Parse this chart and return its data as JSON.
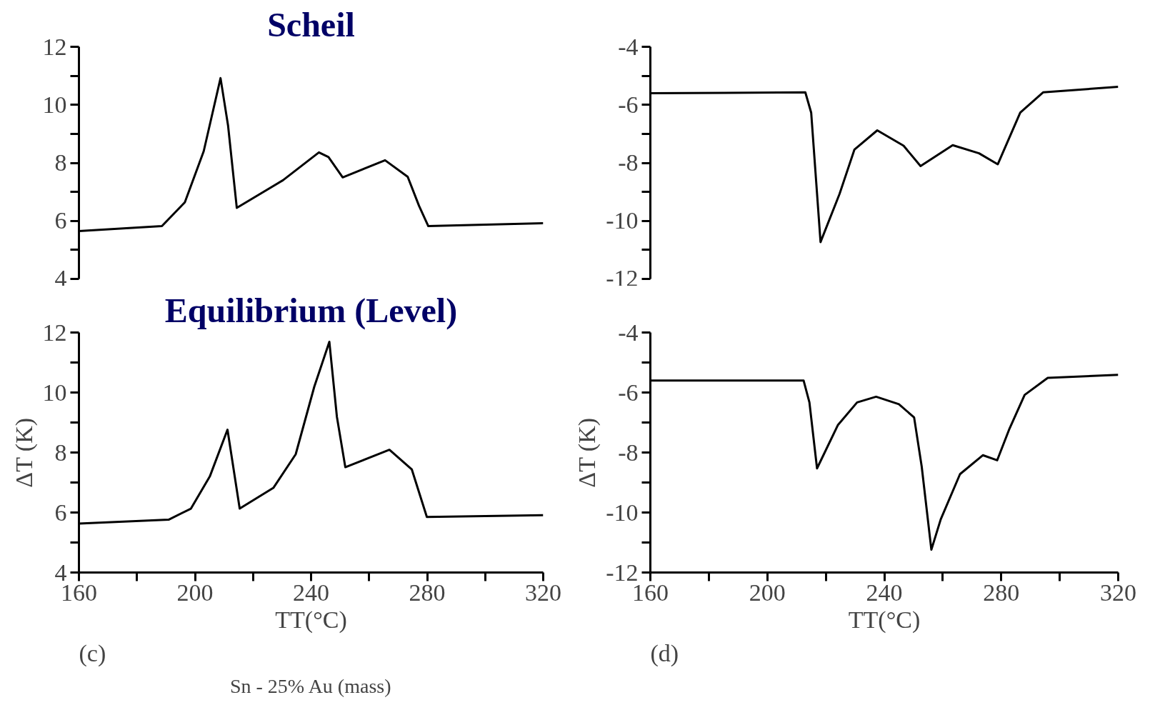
{
  "chart_data": [
    {
      "type": "line",
      "title": "Scheil",
      "tick_labels": "y",
      "xlim": [
        160,
        320
      ],
      "ylim": [
        4,
        12
      ],
      "yticks": [
        4,
        {
          "value": 5,
          "label": null
        },
        6,
        {
          "value": 7,
          "label": null
        },
        8,
        {
          "value": 9,
          "label": null
        },
        10,
        {
          "value": 11,
          "label": null
        },
        12
      ],
      "x": [
        160,
        188.6,
        196.5,
        203,
        208.8,
        211.4,
        214.4,
        230.3,
        242.7,
        246,
        250.9,
        265.5,
        273.3,
        277.2,
        280.4,
        320
      ],
      "series": [
        {
          "color": "#000000",
          "values": [
            5.65,
            5.82,
            6.64,
            8.4,
            10.92,
            9.28,
            6.45,
            7.4,
            8.36,
            8.2,
            7.5,
            8.09,
            7.52,
            6.52,
            5.82,
            5.92
          ]
        }
      ]
    },
    {
      "type": "line",
      "tick_labels": "y",
      "xlim": [
        160,
        320
      ],
      "ylim": [
        -12,
        -4
      ],
      "yticks": [
        -12,
        {
          "value": -11,
          "label": null
        },
        -10,
        {
          "value": -9,
          "label": null
        },
        -8,
        {
          "value": -7,
          "label": null
        },
        -6,
        {
          "value": -5,
          "label": null
        },
        -4
      ],
      "x": [
        160,
        213,
        215,
        218.2,
        224.7,
        229.8,
        237.6,
        246.6,
        252.4,
        263.4,
        272.4,
        278.8,
        286.5,
        294.3,
        320
      ],
      "series": [
        {
          "color": "#000000",
          "values": [
            -5.6,
            -5.57,
            -6.27,
            -10.73,
            -9.07,
            -7.54,
            -6.88,
            -7.41,
            -8.11,
            -7.39,
            -7.67,
            -8.05,
            -6.27,
            -5.57,
            -5.38
          ]
        }
      ]
    },
    {
      "type": "line",
      "title": "Equilibrium (Level)",
      "xlabel": "TT(°C)",
      "ylabel": "ΔT (K)",
      "annotations": [
        "(c)",
        "Sn - 25% Au (mass)"
      ],
      "xlim": [
        160,
        320
      ],
      "ylim": [
        4,
        12
      ],
      "xticks": [
        160,
        {
          "value": 180,
          "label": null
        },
        200,
        {
          "value": 220,
          "label": null
        },
        240,
        {
          "value": 260,
          "label": null
        },
        280,
        {
          "value": 300,
          "label": null
        },
        320
      ],
      "yticks": [
        4,
        {
          "value": 5,
          "label": null
        },
        6,
        {
          "value": 7,
          "label": null
        },
        8,
        {
          "value": 9,
          "label": null
        },
        10,
        {
          "value": 11,
          "label": null
        },
        12
      ],
      "x": [
        160,
        190.9,
        198.6,
        205.1,
        211.2,
        215.4,
        227,
        234.7,
        241.1,
        246.3,
        248.9,
        251.8,
        267,
        274.7,
        279.9,
        320
      ],
      "series": [
        {
          "color": "#000000",
          "values": [
            5.63,
            5.76,
            6.13,
            7.2,
            8.76,
            6.13,
            6.82,
            7.94,
            10.19,
            11.69,
            9.19,
            7.51,
            8.09,
            7.44,
            5.85,
            5.91
          ]
        }
      ]
    },
    {
      "type": "line",
      "xlabel": "TT(°C)",
      "ylabel": "ΔT (K)",
      "annotations": [
        "(d)"
      ],
      "xlim": [
        160,
        320
      ],
      "ylim": [
        -12,
        -4
      ],
      "xticks": [
        160,
        {
          "value": 180,
          "label": null
        },
        200,
        {
          "value": 220,
          "label": null
        },
        240,
        {
          "value": 260,
          "label": null
        },
        280,
        {
          "value": 300,
          "label": null
        },
        320
      ],
      "yticks": [
        -12,
        {
          "value": -11,
          "label": null
        },
        -10,
        {
          "value": -9,
          "label": null
        },
        -8,
        {
          "value": -7,
          "label": null
        },
        -6,
        {
          "value": -5,
          "label": null
        },
        -4
      ],
      "x": [
        160,
        212.4,
        214.4,
        217,
        224.1,
        230.7,
        237.2,
        245,
        250.2,
        252.8,
        256.1,
        259.3,
        265.9,
        273.7,
        278.6,
        282.8,
        288,
        295.9,
        320
      ],
      "series": [
        {
          "color": "#000000",
          "values": [
            -5.6,
            -5.6,
            -6.33,
            -8.53,
            -7.09,
            -6.33,
            -6.14,
            -6.39,
            -6.83,
            -8.47,
            -11.24,
            -10.23,
            -8.72,
            -8.09,
            -8.26,
            -7.21,
            -6.08,
            -5.51,
            -5.41
          ]
        }
      ]
    }
  ]
}
